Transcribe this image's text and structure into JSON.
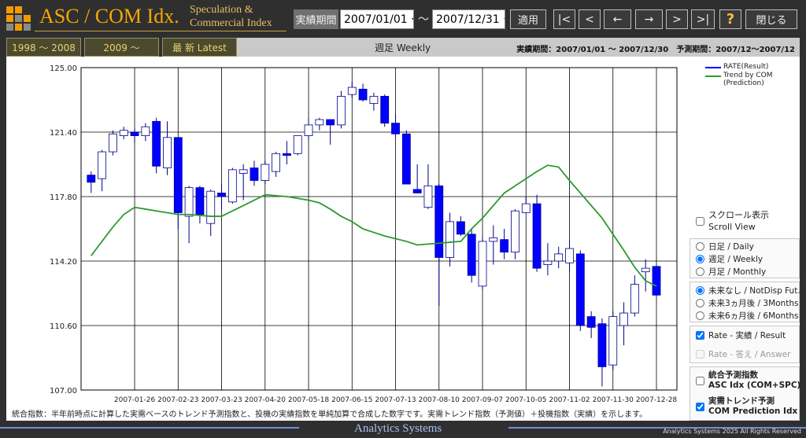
{
  "header": {
    "title": "ASC / COM Idx.",
    "subtitle": "Speculation & Commercial Index",
    "period_button": "実績期間",
    "start_date": "2007/01/01",
    "range_sep": "～",
    "end_date": "2007/12/31",
    "apply": "適用",
    "nav": [
      "|<",
      "<",
      "←",
      "→",
      ">",
      ">|"
    ],
    "help": "?",
    "close": "閉じる"
  },
  "tabs": [
    "1998 ～ 2008",
    "2009 ～",
    "最 新 Latest"
  ],
  "view_label": "週足 Weekly",
  "period_info": "実績期間：2007/01/01 ～ 2007/12/30　予測期間：2007/12～2007/12",
  "chart_data": {
    "type": "candlestick",
    "categories": [
      null,
      null,
      null,
      null,
      "2007-01-26",
      null,
      null,
      null,
      "2007-02-23",
      null,
      null,
      null,
      "2007-03-23",
      null,
      null,
      null,
      "2007-04-20",
      null,
      null,
      null,
      "2007-05-18",
      null,
      null,
      null,
      "2007-06-15",
      null,
      null,
      null,
      "2007-07-13",
      null,
      null,
      null,
      "2007-08-10",
      null,
      null,
      null,
      "2007-09-07",
      null,
      null,
      null,
      "2007-10-05",
      null,
      null,
      null,
      "2007-11-02",
      null,
      null,
      null,
      "2007-11-30",
      null,
      null,
      null,
      "2007-12-28"
    ],
    "series": [
      {
        "name": "RATE(Result)",
        "type": "candlestick",
        "color": "#0000ff",
        "open": [
          119.0,
          118.8,
          120.3,
          121.2,
          121.4,
          121.2,
          122.0,
          119.4,
          121.1,
          116.7,
          118.3,
          116.3,
          118.0,
          117.5,
          119.1,
          119.4,
          118.7,
          119.2,
          120.2,
          120.2,
          121.2,
          121.8,
          122.1,
          121.8,
          123.5,
          123.8,
          123.0,
          123.4,
          121.9,
          121.3,
          118.2,
          117.2,
          118.4,
          114.4,
          116.4,
          115.7,
          112.8,
          115.3,
          115.4,
          114.7,
          116.9,
          117.4,
          114.0,
          114.2,
          114.1,
          114.6,
          111.1,
          110.7,
          108.4,
          110.6,
          111.3,
          113.6,
          113.9
        ],
        "high": [
          119.2,
          120.4,
          121.5,
          121.7,
          121.6,
          121.9,
          122.2,
          122.0,
          121.1,
          118.4,
          118.4,
          118.2,
          118.5,
          119.4,
          119.6,
          119.8,
          119.8,
          120.3,
          120.9,
          121.2,
          122.2,
          122.2,
          122.1,
          123.7,
          124.2,
          124.1,
          123.6,
          123.5,
          122.4,
          121.5,
          119.6,
          119.6,
          118.5,
          116.9,
          116.7,
          116.0,
          115.6,
          116.2,
          116.0,
          117.1,
          117.8,
          117.9,
          115.2,
          115.0,
          115.4,
          114.8,
          111.4,
          111.0,
          111.4,
          111.9,
          113.4,
          114.3,
          114.0
        ],
        "low": [
          118.0,
          118.1,
          120.1,
          121.0,
          120.8,
          120.9,
          119.1,
          119.0,
          116.0,
          115.2,
          116.3,
          115.6,
          117.1,
          117.4,
          117.6,
          118.4,
          118.5,
          118.9,
          119.6,
          120.1,
          121.0,
          121.5,
          120.7,
          121.6,
          123.3,
          123.1,
          122.6,
          121.7,
          121.1,
          118.5,
          118.0,
          117.1,
          111.7,
          113.9,
          115.6,
          113.0,
          112.6,
          114.0,
          114.3,
          114.3,
          116.9,
          113.6,
          113.4,
          113.8,
          113.6,
          110.3,
          109.9,
          107.2,
          108.1,
          109.5,
          111.1,
          112.5,
          112.2
        ],
        "close": [
          118.6,
          120.3,
          121.3,
          121.5,
          121.2,
          121.7,
          119.5,
          121.1,
          116.9,
          118.3,
          116.8,
          118.1,
          117.8,
          119.3,
          119.3,
          118.7,
          119.6,
          120.2,
          120.1,
          121.2,
          121.8,
          122.1,
          121.8,
          123.4,
          123.9,
          123.2,
          123.4,
          121.9,
          121.3,
          118.5,
          118.0,
          118.4,
          114.4,
          116.4,
          115.7,
          113.4,
          115.3,
          115.5,
          114.7,
          117.0,
          117.4,
          113.8,
          114.2,
          114.6,
          114.9,
          110.6,
          110.5,
          108.3,
          111.1,
          111.3,
          112.9,
          113.8,
          112.3
        ]
      },
      {
        "name": "Trend by COM (Prediction)",
        "type": "line",
        "color": "#2e9a2e",
        "values": [
          114.5,
          115.3,
          116.1,
          116.8,
          117.2,
          117.1,
          117.0,
          116.9,
          116.8,
          116.8,
          116.75,
          116.7,
          116.7,
          117.0,
          117.3,
          117.6,
          117.9,
          117.85,
          117.8,
          117.7,
          117.6,
          117.45,
          117.1,
          116.7,
          116.4,
          116.0,
          115.8,
          115.6,
          115.45,
          115.3,
          115.1,
          115.15,
          115.2,
          115.25,
          115.3,
          116.0,
          116.6,
          117.3,
          118.0,
          118.4,
          118.8,
          119.2,
          119.55,
          119.45,
          118.7,
          118.0,
          117.3,
          116.6,
          115.7,
          114.8,
          113.85,
          113.1,
          112.8
        ]
      }
    ],
    "ylim": [
      107,
      125
    ],
    "yticks": [
      {
        "value": 107,
        "label": "107.00"
      },
      {
        "value": 110.6,
        "label": "110.60"
      },
      {
        "value": 114.2,
        "label": "114.20"
      },
      {
        "value": 117.8,
        "label": "117.80"
      },
      {
        "value": 121.4,
        "label": "121.40"
      },
      {
        "value": 125,
        "label": "125.00"
      }
    ],
    "grid": true
  },
  "controls": {
    "scroll": {
      "label_ja": "スクロール表示",
      "label_en": "Scroll View",
      "checked": false
    },
    "interval": {
      "options": [
        "日足 / Daily",
        "週足 / Weekly",
        "月足 / Monthly"
      ],
      "selected": 1
    },
    "future": {
      "options": [
        "未来なし / NotDisp Fut.",
        "未来3ヵ月後 / 3Months",
        "未来6ヵ月後 / 6Months"
      ],
      "selected": 0
    },
    "rate": [
      {
        "label": "Rate - 実績 / Result",
        "checked": true,
        "enabled": true
      },
      {
        "label": "Rate - 答え / Answer",
        "checked": false,
        "enabled": false
      }
    ],
    "indices": [
      {
        "label_ja": "統合予測指数",
        "label_en": "ASC Idx (COM+SPC)",
        "checked": false
      },
      {
        "label_ja": "実需トレンド予測",
        "label_en": "COM Prediction Idx",
        "checked": true
      }
    ]
  },
  "note": "統合指数：半年前時点に計算した実需ベースのトレンド予測指数と、投機の実績指数を単純加算で合成した数字です。実需トレンド指数（予測値）＋投機指数（実績）を示します。",
  "footer": {
    "brand": "Analytics Systems",
    "copyright": "Analytics Systems 2025 All Rights Reserved"
  }
}
